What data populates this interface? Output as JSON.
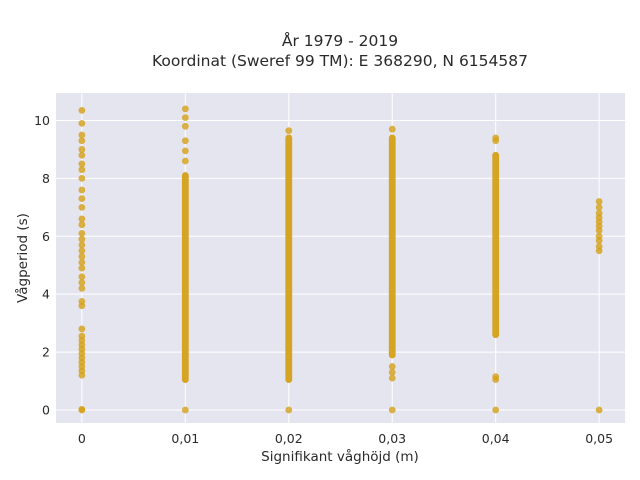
{
  "chart_data": {
    "type": "scatter",
    "title_line1": "År 1979 - 2019",
    "title_line2": "Koordinat (Sweref 99 TM): E 368290, N 6154587",
    "xlabel": "Signifikant våghöjd (m)",
    "ylabel": "Vågperiod (s)",
    "xlim": [
      -0.0025,
      0.0525
    ],
    "ylim": [
      -0.45,
      10.95
    ],
    "x_ticks": [
      0,
      0.01,
      0.02,
      0.03,
      0.04,
      0.05
    ],
    "x_tick_labels": [
      "0",
      "0,01",
      "0,02",
      "0,03",
      "0,04",
      "0,05"
    ],
    "y_ticks": [
      0,
      2,
      4,
      6,
      8,
      10
    ],
    "y_tick_labels": [
      "0",
      "2",
      "4",
      "6",
      "8",
      "10"
    ],
    "grid": true,
    "colors": {
      "marker": "#d4a017",
      "background": "#e5e5f0",
      "grid": "#ffffff"
    },
    "series": [
      {
        "points": [
          {
            "x": 0,
            "y": 0
          },
          {
            "x": 0,
            "y": 0.02
          },
          {
            "x": 0,
            "y": 1.2
          },
          {
            "x": 0,
            "y": 1.35
          },
          {
            "x": 0,
            "y": 1.5
          },
          {
            "x": 0,
            "y": 1.65
          },
          {
            "x": 0,
            "y": 1.8
          },
          {
            "x": 0,
            "y": 1.95
          },
          {
            "x": 0,
            "y": 2.1
          },
          {
            "x": 0,
            "y": 2.25
          },
          {
            "x": 0,
            "y": 2.4
          },
          {
            "x": 0,
            "y": 2.55
          },
          {
            "x": 0,
            "y": 2.8
          },
          {
            "x": 0,
            "y": 3.6
          },
          {
            "x": 0,
            "y": 3.75
          },
          {
            "x": 0,
            "y": 4.2
          },
          {
            "x": 0,
            "y": 4.4
          },
          {
            "x": 0,
            "y": 4.6
          },
          {
            "x": 0,
            "y": 4.9
          },
          {
            "x": 0,
            "y": 5.1
          },
          {
            "x": 0,
            "y": 5.3
          },
          {
            "x": 0,
            "y": 5.5
          },
          {
            "x": 0,
            "y": 5.7
          },
          {
            "x": 0,
            "y": 5.9
          },
          {
            "x": 0,
            "y": 6.1
          },
          {
            "x": 0,
            "y": 6.4
          },
          {
            "x": 0,
            "y": 6.6
          },
          {
            "x": 0,
            "y": 7.0
          },
          {
            "x": 0,
            "y": 7.3
          },
          {
            "x": 0,
            "y": 7.6
          },
          {
            "x": 0,
            "y": 8.0
          },
          {
            "x": 0,
            "y": 8.3
          },
          {
            "x": 0,
            "y": 8.5
          },
          {
            "x": 0,
            "y": 8.8
          },
          {
            "x": 0,
            "y": 9.0
          },
          {
            "x": 0,
            "y": 9.3
          },
          {
            "x": 0,
            "y": 9.5
          },
          {
            "x": 0,
            "y": 9.9
          },
          {
            "x": 0,
            "y": 10.35
          },
          {
            "x": 0.01,
            "y": 0
          },
          {
            "x": 0.01,
            "y": 10.4
          },
          {
            "x": 0.01,
            "y": 10.1
          },
          {
            "x": 0.01,
            "y": 9.8
          },
          {
            "x": 0.01,
            "y": 9.3
          },
          {
            "x": 0.01,
            "y": 8.95
          },
          {
            "x": 0.01,
            "y": 8.6
          },
          {
            "x": 0.02,
            "y": 0
          },
          {
            "x": 0.02,
            "y": 9.65
          },
          {
            "x": 0.03,
            "y": 0
          },
          {
            "x": 0.03,
            "y": 9.7
          },
          {
            "x": 0.03,
            "y": 1.1
          },
          {
            "x": 0.03,
            "y": 1.3
          },
          {
            "x": 0.03,
            "y": 1.5
          },
          {
            "x": 0.04,
            "y": 0
          },
          {
            "x": 0.04,
            "y": 1.05
          },
          {
            "x": 0.04,
            "y": 1.15
          },
          {
            "x": 0.04,
            "y": 9.3
          },
          {
            "x": 0.04,
            "y": 9.4
          },
          {
            "x": 0.05,
            "y": 0
          },
          {
            "x": 0.05,
            "y": 5.5
          },
          {
            "x": 0.05,
            "y": 5.65
          },
          {
            "x": 0.05,
            "y": 5.85
          },
          {
            "x": 0.05,
            "y": 6.0
          },
          {
            "x": 0.05,
            "y": 6.2
          },
          {
            "x": 0.05,
            "y": 6.35
          },
          {
            "x": 0.05,
            "y": 6.5
          },
          {
            "x": 0.05,
            "y": 6.65
          },
          {
            "x": 0.05,
            "y": 6.8
          },
          {
            "x": 0.05,
            "y": 7.0
          },
          {
            "x": 0.05,
            "y": 7.2
          }
        ],
        "dense_ranges": [
          {
            "x": 0.01,
            "y_min": 1.05,
            "y_max": 8.1
          },
          {
            "x": 0.02,
            "y_min": 1.05,
            "y_max": 9.4
          },
          {
            "x": 0.03,
            "y_min": 1.9,
            "y_max": 9.4
          },
          {
            "x": 0.04,
            "y_min": 2.6,
            "y_max": 8.8
          }
        ]
      }
    ]
  }
}
